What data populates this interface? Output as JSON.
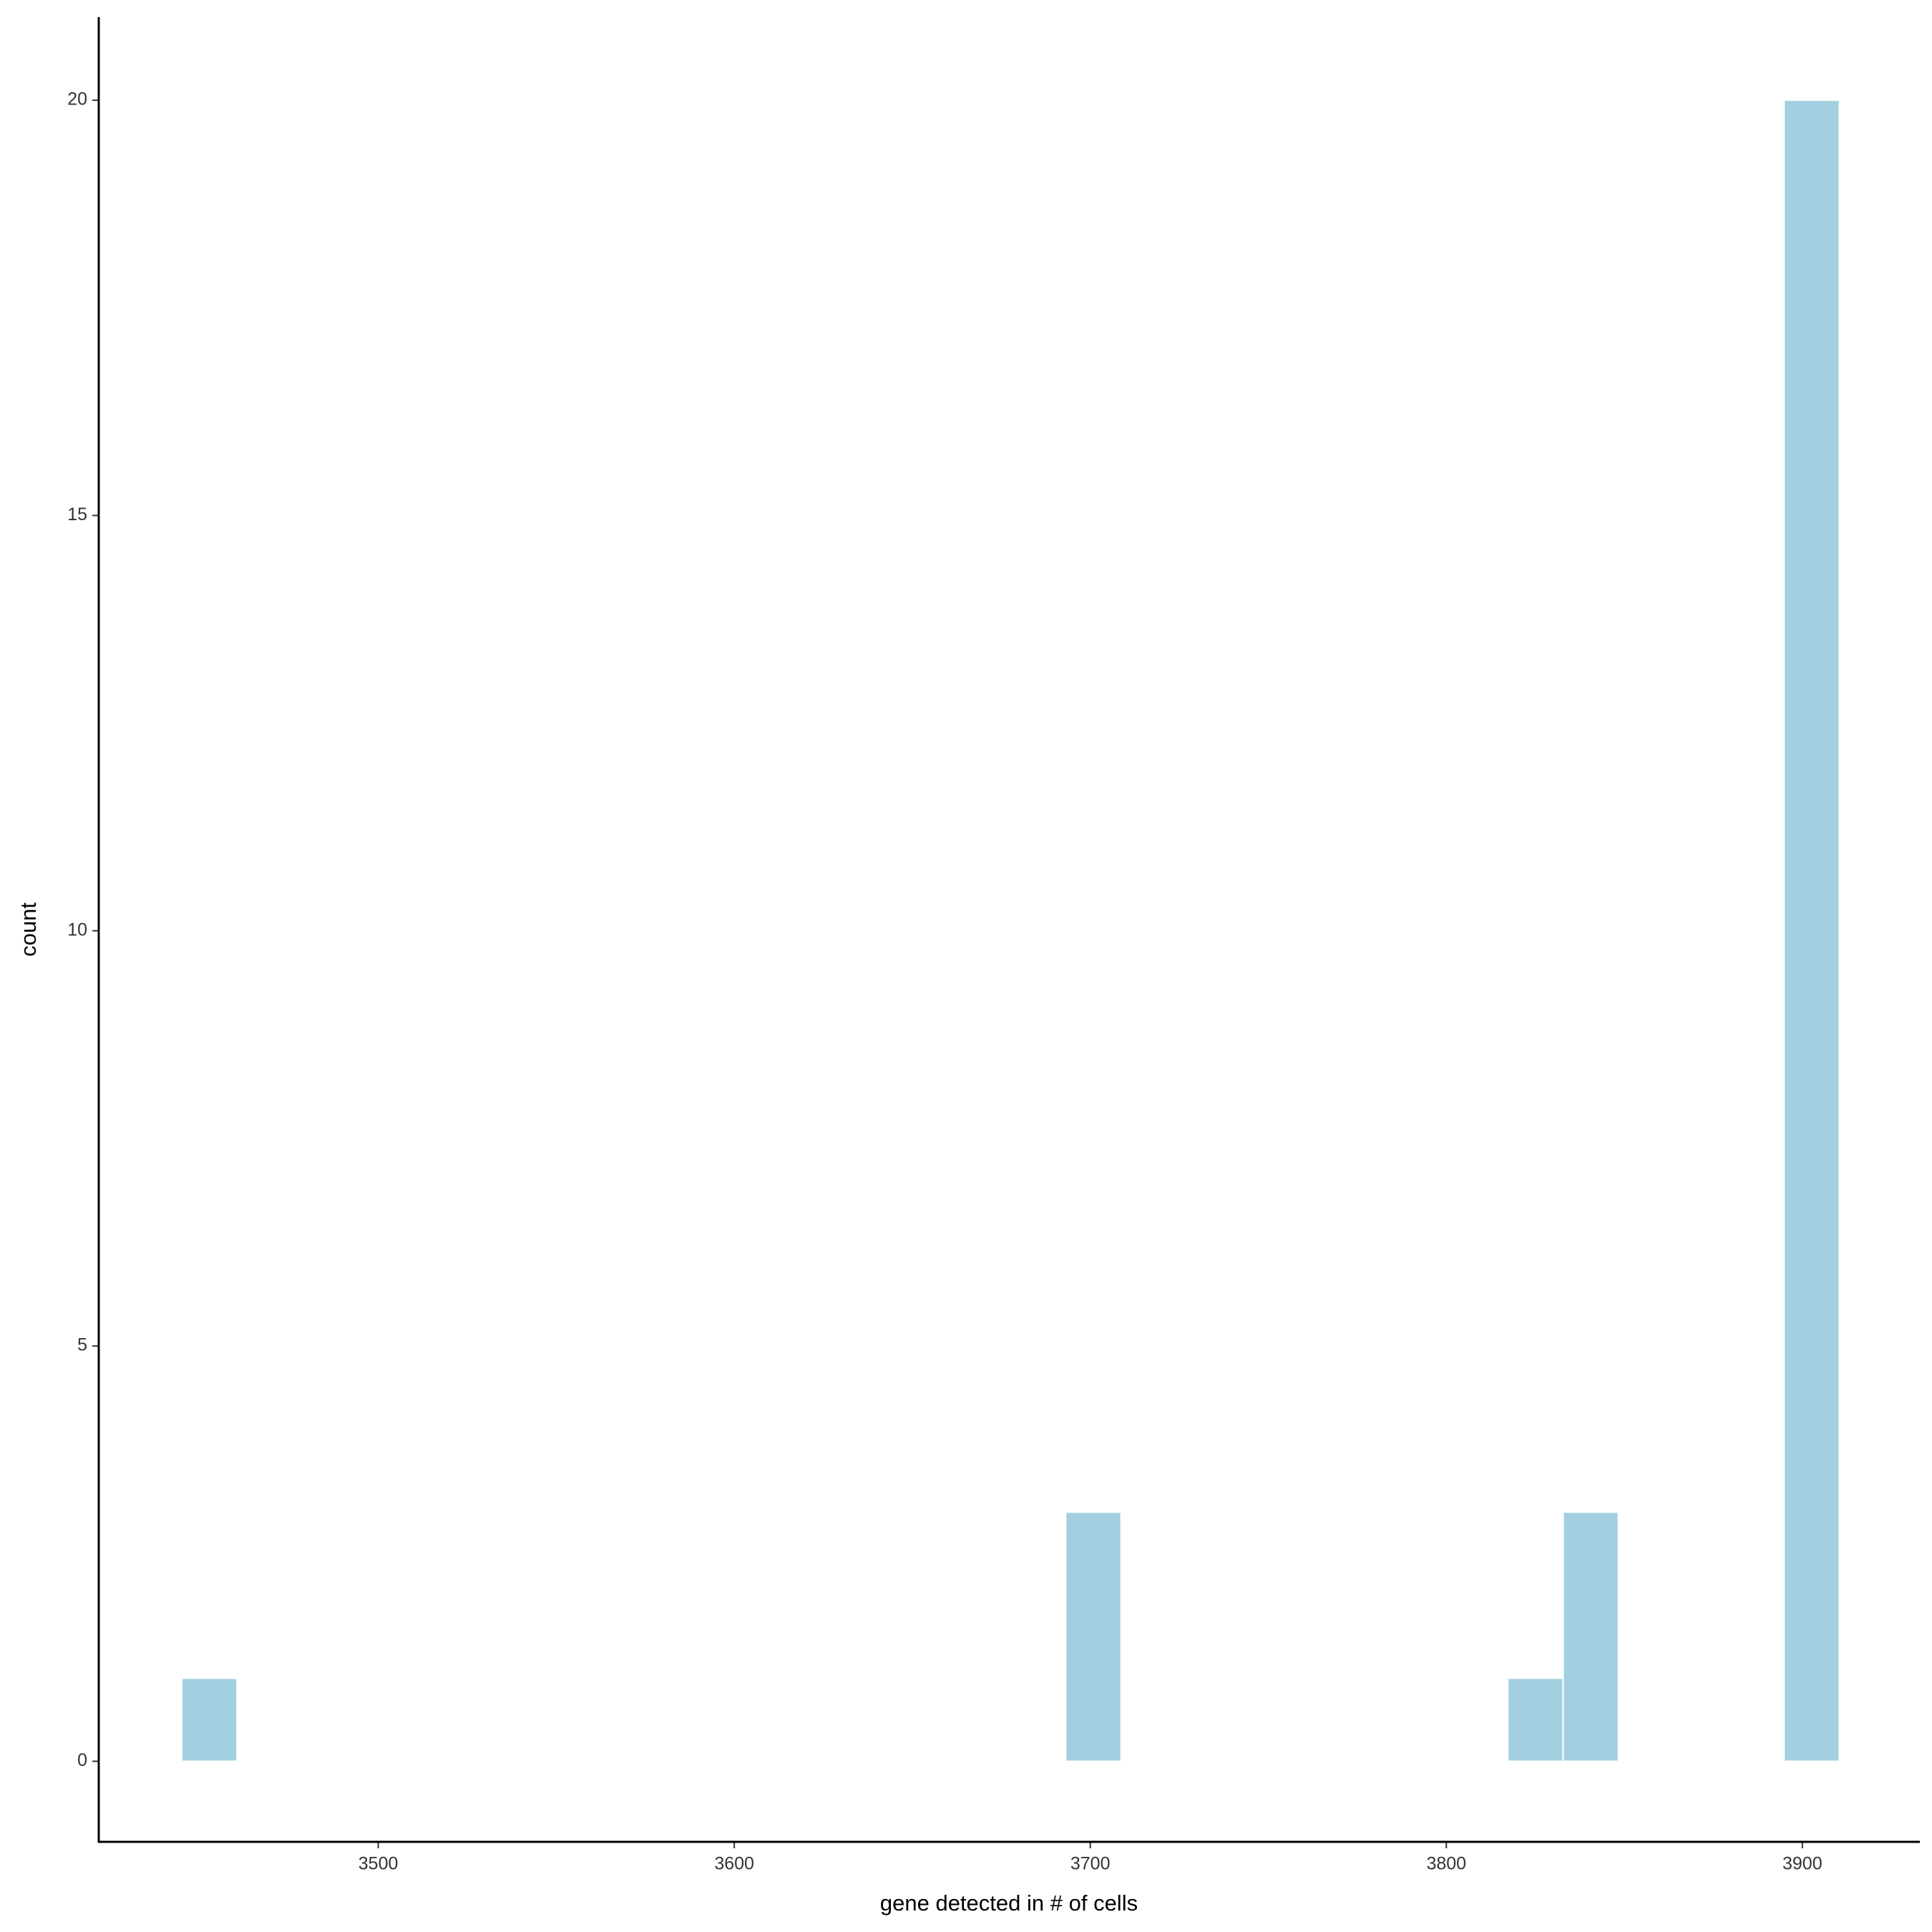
{
  "chart_data": {
    "type": "histogram",
    "x_label": "gene detected in # of cells",
    "y_label": "count",
    "bins": [
      3444.8,
      3460.32,
      3475.84,
      3491.36,
      3506.88,
      3522.4,
      3537.92,
      3553.44,
      3568.96,
      3584.48,
      3600,
      3615.52,
      3631.04,
      3646.56,
      3662.08,
      3677.6,
      3693.12,
      3708.64,
      3724.16,
      3739.68,
      3755.2,
      3770.72,
      3786.24,
      3801.76,
      3817.28,
      3832.8,
      3848.32,
      3863.84,
      3879.36,
      3894.88,
      3910.4
    ],
    "values": [
      1,
      0,
      0,
      0,
      0,
      0,
      0,
      0,
      0,
      0,
      0,
      0,
      0,
      0,
      0,
      0,
      3,
      0,
      0,
      0,
      0,
      0,
      0,
      0,
      1,
      3,
      0,
      0,
      0,
      20
    ],
    "color": "#a3d0e0",
    "xlim": [
      3421.5,
      3933
    ],
    "xticks": [
      3500,
      3600,
      3700,
      3800,
      3900
    ],
    "ylim": [
      -0.97,
      21.0
    ],
    "yticks": [
      0,
      5,
      10,
      15,
      20
    ],
    "grid": false
  }
}
